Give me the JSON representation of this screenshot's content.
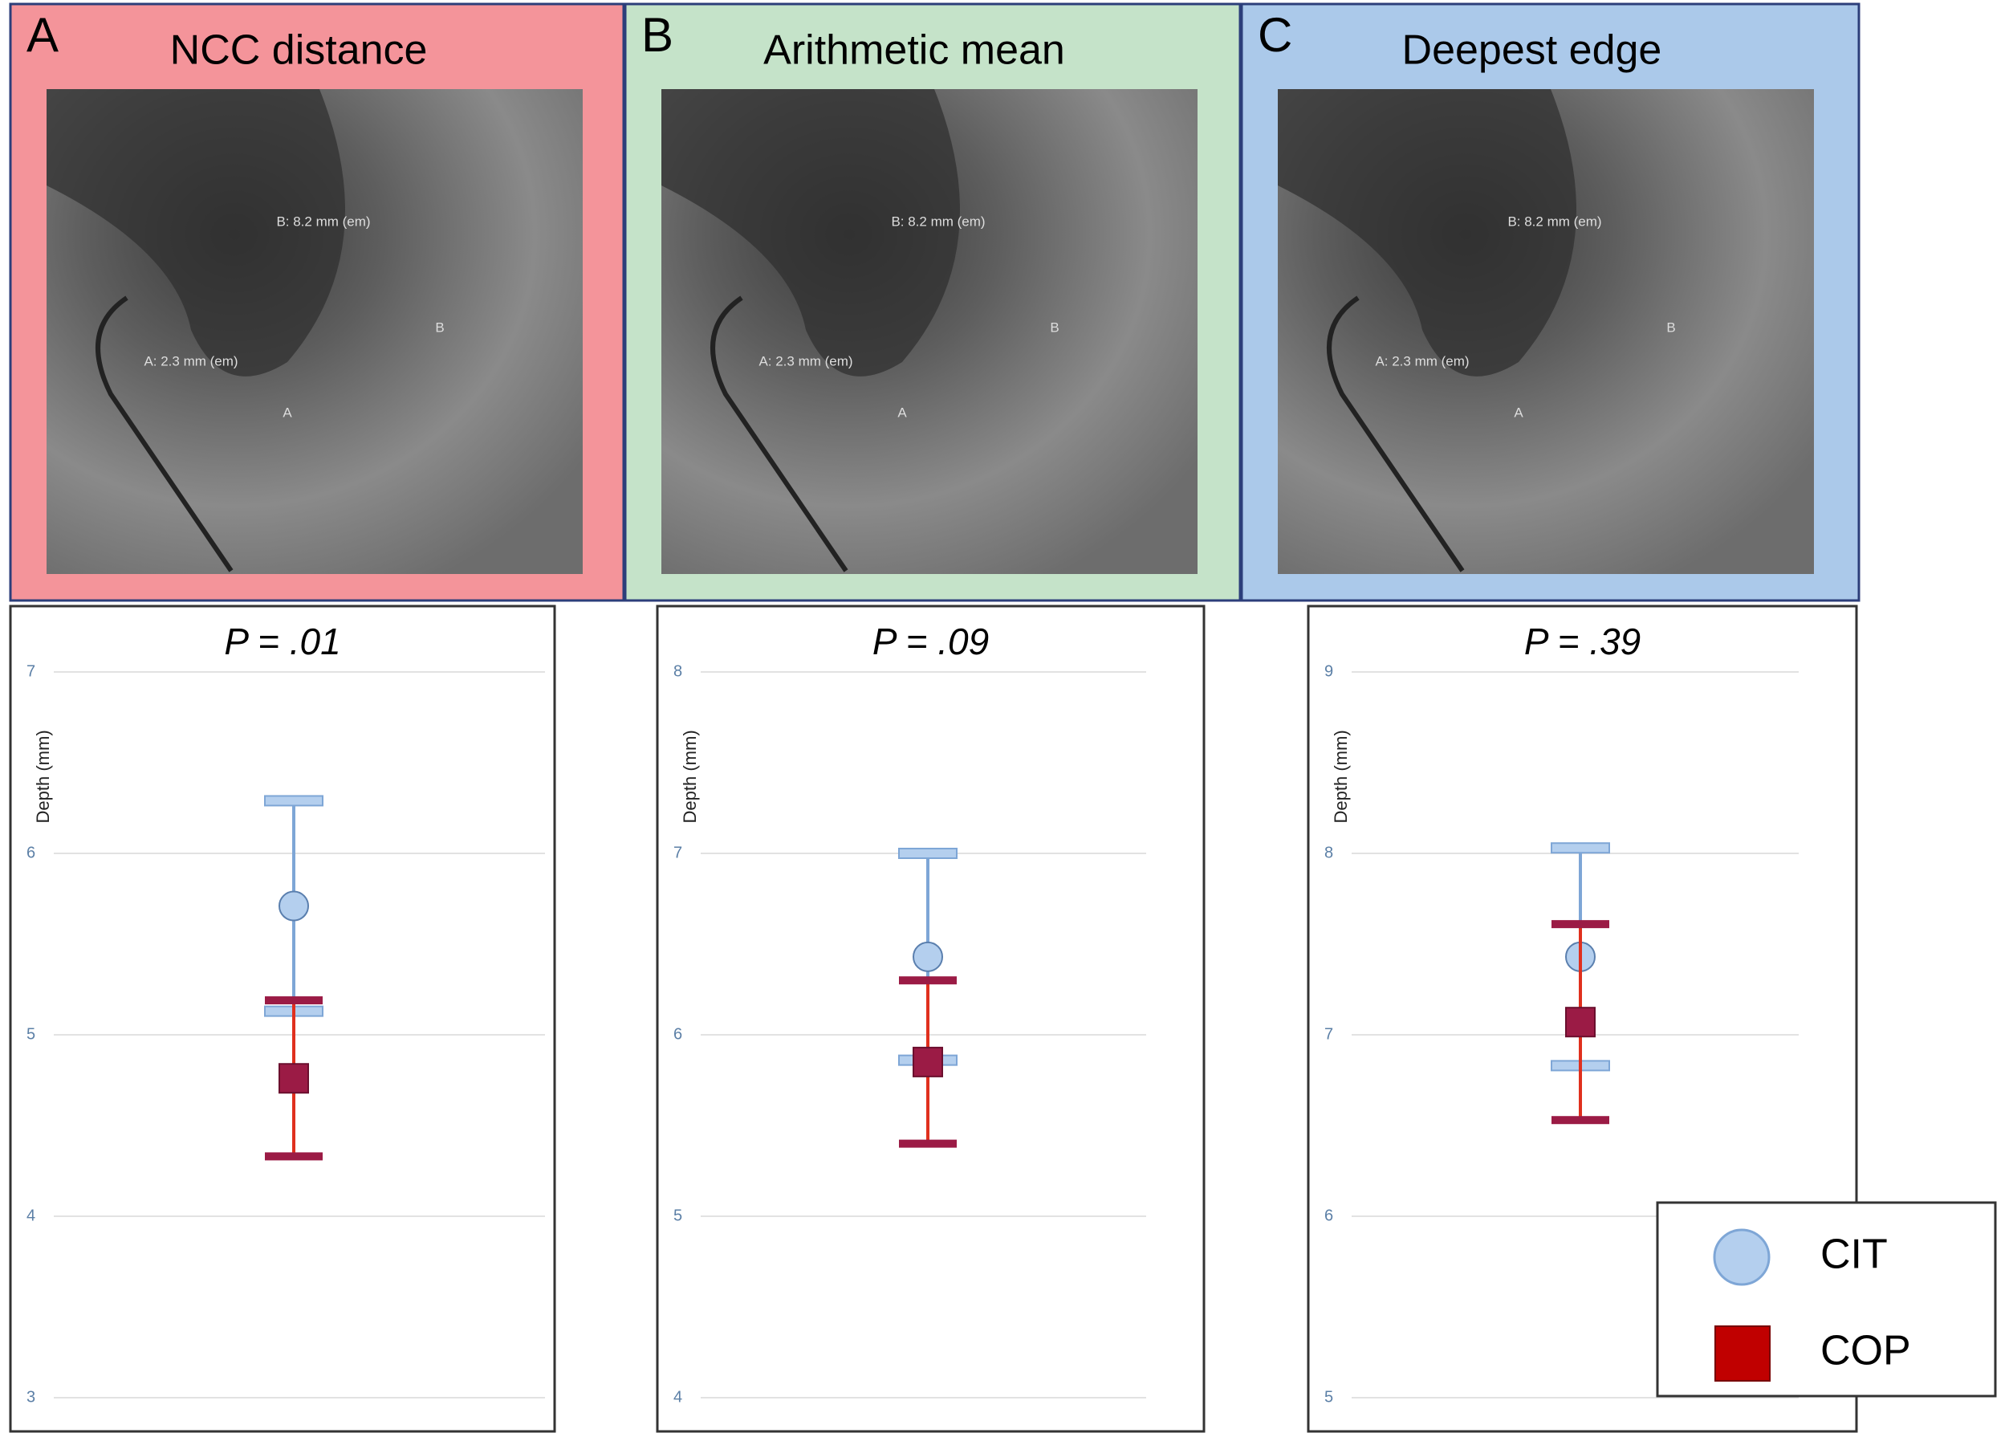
{
  "panels": [
    {
      "letter": "A",
      "title": "NCC distance",
      "background": "#f4949a",
      "annotations": [
        "B: 8.2 mm (em)",
        "B",
        "A: 2.3 mm (em)",
        "A"
      ]
    },
    {
      "letter": "B",
      "title": "Arithmetic mean",
      "background": "#c5e3c9",
      "annotations": [
        "B: 8.2 mm (em)",
        "B",
        "A: 2.3 mm (em)",
        "A"
      ]
    },
    {
      "letter": "C",
      "title": "Deepest edge",
      "background": "#abc9ea",
      "annotations": [
        "B: 8.2 mm (em)",
        "B",
        "A: 2.3 mm (em)",
        "A"
      ]
    }
  ],
  "legend": {
    "position": "lower right",
    "items": [
      {
        "name": "CIT",
        "marker": "circle",
        "color": "#b4cfee",
        "line_color": "#7ea6d6"
      },
      {
        "name": "COP",
        "marker": "square",
        "color": "#c00000",
        "line_color": "#e0301e"
      }
    ]
  },
  "chart_data": [
    {
      "type": "errorbar",
      "title": "P = .01",
      "y_label": "Depth (mm)",
      "categories": [
        null
      ],
      "ylim": [
        3,
        7
      ],
      "yticks": [
        3,
        4,
        5,
        6,
        7
      ],
      "grid": true,
      "series": [
        {
          "values": [
            5.71
          ],
          "errors": [
            0.58
          ]
        },
        {
          "values": [
            4.76
          ],
          "errors": [
            0.43
          ]
        }
      ]
    },
    {
      "type": "errorbar",
      "title": "P = .09",
      "y_label": "Depth (mm)",
      "categories": [
        null
      ],
      "ylim": [
        4,
        8
      ],
      "yticks": [
        4,
        5,
        6,
        7,
        8
      ],
      "grid": true,
      "series": [
        {
          "values": [
            6.43
          ],
          "errors": [
            0.57
          ]
        },
        {
          "values": [
            5.85
          ],
          "errors": [
            0.45
          ]
        }
      ]
    },
    {
      "type": "errorbar",
      "title": "P = .39",
      "y_label": "Depth (mm)",
      "categories": [
        null
      ],
      "ylim": [
        5,
        9
      ],
      "yticks": [
        5,
        6,
        7,
        8,
        9
      ],
      "grid": true,
      "series": [
        {
          "values": [
            7.43
          ],
          "errors": [
            0.6
          ]
        },
        {
          "values": [
            7.07
          ],
          "errors": [
            0.54
          ]
        }
      ]
    }
  ]
}
